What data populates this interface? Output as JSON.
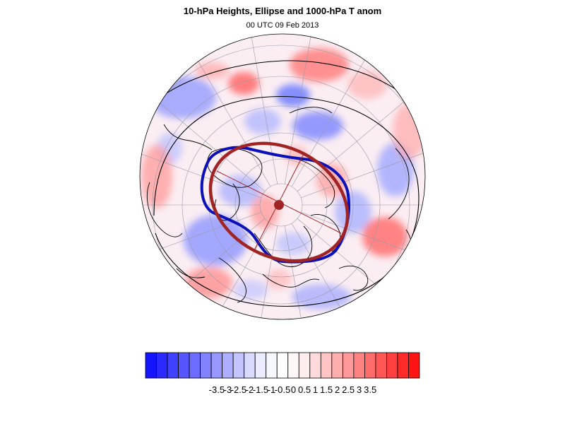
{
  "title": "10-hPa Heights, Ellipse and 1000-hPa T anom",
  "subtitle": "00 UTC 09 Feb 2013",
  "colors": {
    "height_contour": "#000000",
    "ellipse_observed": "#0b10b8",
    "ellipse_fit": "#a02424",
    "vortex_center": "#a02424",
    "graticule": "#9a9aa8",
    "coastline": "#000000"
  },
  "colorbar": {
    "tick_labels": [
      "-3.5",
      "-3",
      "-2.5",
      "-2",
      "-1.5",
      "-1",
      "-0.5",
      "0",
      "0.5",
      "1",
      "1.5",
      "2",
      "2.5",
      "3",
      "3.5"
    ],
    "colors": [
      "#1414ff",
      "#2a2aff",
      "#4040ff",
      "#5656ff",
      "#6c6cff",
      "#8282ff",
      "#9898ff",
      "#aeaeff",
      "#c4c4ff",
      "#dadaff",
      "#ececff",
      "#f7f7ff",
      "#ffffff",
      "#fff7f7",
      "#ffecec",
      "#ffdada",
      "#ffc4c4",
      "#ffaeae",
      "#ff9898",
      "#ff8282",
      "#ff6c6c",
      "#ff5656",
      "#ff4040",
      "#ff2a2a",
      "#ff1414"
    ]
  }
}
